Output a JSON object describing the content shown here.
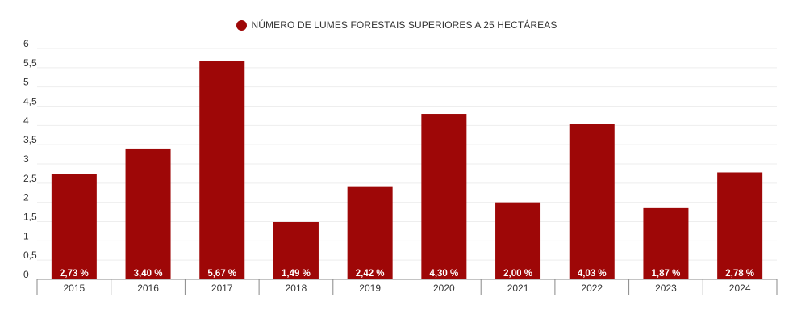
{
  "chart_data": {
    "type": "bar",
    "title": "",
    "xlabel": "",
    "ylabel": "",
    "categories": [
      "2015",
      "2016",
      "2017",
      "2018",
      "2019",
      "2020",
      "2021",
      "2022",
      "2023",
      "2024"
    ],
    "series": [
      {
        "name": "NÚMERO DE LUMES FORESTAIS SUPERIORES A 25 HECTÁREAS",
        "values": [
          2.73,
          3.4,
          5.67,
          1.49,
          2.42,
          4.3,
          2.0,
          4.03,
          1.87,
          2.78
        ],
        "data_labels": [
          "2,73 %",
          "3,40 %",
          "5,67 %",
          "1,49 %",
          "2,42 %",
          "4,30 %",
          "2,00 %",
          "4,03 %",
          "1,87 %",
          "2,78 %"
        ]
      }
    ],
    "ylim": [
      0,
      6
    ],
    "y_ticks": [
      0,
      0.5,
      1,
      1.5,
      2,
      2.5,
      3,
      3.5,
      4,
      4.5,
      5,
      5.5,
      6
    ],
    "y_tick_labels": [
      "0",
      "0,5",
      "1",
      "1,5",
      "2",
      "2,5",
      "3",
      "3,5",
      "4",
      "4,5",
      "5",
      "5,5",
      "6"
    ],
    "grid": true,
    "legend_position": "top-center",
    "colors": {
      "bar": "#9e0707",
      "grid": "#eeeeee",
      "axis": "#888888",
      "tick_text": "#333333",
      "data_label": "#ffffff"
    }
  }
}
